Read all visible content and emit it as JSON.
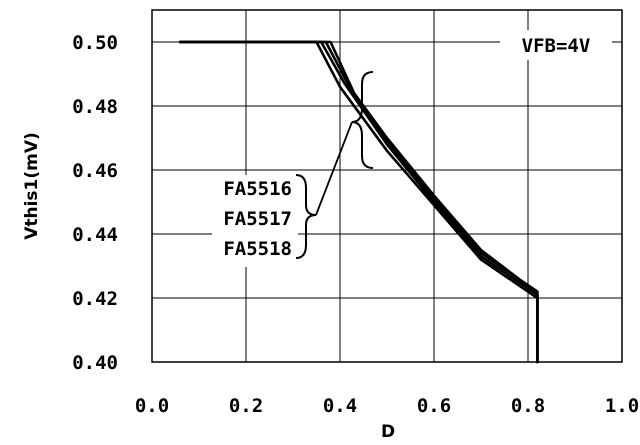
{
  "chart_data": {
    "type": "line",
    "title": "",
    "xlabel": "D",
    "ylabel": "Vthis1(mV)",
    "xlim": [
      0.0,
      1.0
    ],
    "ylim": [
      0.4,
      0.51
    ],
    "x_ticks": [
      "0.0",
      "0.2",
      "0.4",
      "0.6",
      "0.8",
      "1.0"
    ],
    "y_ticks": [
      "0.40",
      "0.42",
      "0.44",
      "0.46",
      "0.48",
      "0.50"
    ],
    "grid": true,
    "condition_label": "VFB=4V",
    "series": [
      {
        "name": "FA5516",
        "x": [
          0.06,
          0.35,
          0.4,
          0.5,
          0.6,
          0.7,
          0.78,
          0.82,
          0.82
        ],
        "y": [
          0.5,
          0.5,
          0.486,
          0.466,
          0.449,
          0.432,
          0.424,
          0.42,
          0.4
        ]
      },
      {
        "name": "FA5517",
        "x": [
          0.06,
          0.36,
          0.41,
          0.5,
          0.6,
          0.7,
          0.78,
          0.82,
          0.82
        ],
        "y": [
          0.5,
          0.5,
          0.487,
          0.468,
          0.45,
          0.433,
          0.425,
          0.421,
          0.4
        ]
      },
      {
        "name": "FA5518",
        "x": [
          0.06,
          0.37,
          0.42,
          0.5,
          0.6,
          0.7,
          0.78,
          0.82,
          0.82
        ],
        "y": [
          0.5,
          0.5,
          0.486,
          0.469,
          0.451,
          0.434,
          0.426,
          0.421,
          0.4
        ]
      },
      {
        "name": "",
        "x": [
          0.06,
          0.38,
          0.43,
          0.5,
          0.6,
          0.7,
          0.78,
          0.82,
          0.82
        ],
        "y": [
          0.5,
          0.5,
          0.484,
          0.47,
          0.452,
          0.435,
          0.426,
          0.422,
          0.4
        ]
      }
    ]
  }
}
